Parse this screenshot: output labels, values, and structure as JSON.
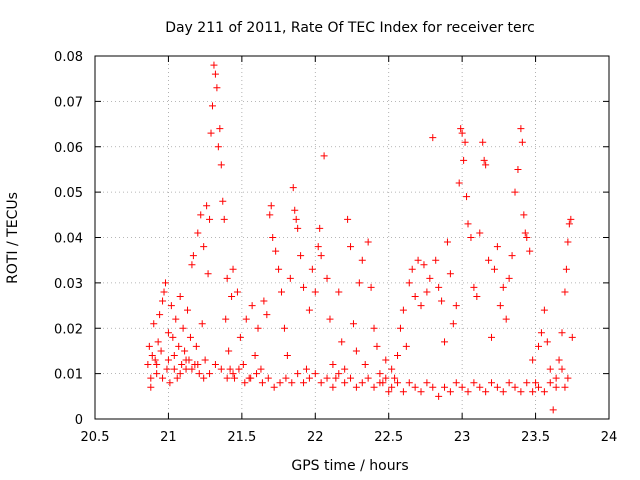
{
  "chart_data": {
    "type": "scatter",
    "title": "Day 211 of 2011, Rate Of TEC Index for receiver terc",
    "xlabel": "GPS time / hours",
    "ylabel": "ROTI / TECUs",
    "xlim": [
      20.5,
      24
    ],
    "ylim": [
      0,
      0.08
    ],
    "xticks": [
      "20.5",
      "21",
      "21.5",
      "22",
      "22.5",
      "23",
      "23.5",
      "24"
    ],
    "yticks": [
      "0",
      "0.01",
      "0.02",
      "0.03",
      "0.04",
      "0.05",
      "0.06",
      "0.07",
      "0.08"
    ],
    "grid": true,
    "marker": "+",
    "color": "#ff0000",
    "series": [
      {
        "points": [
          [
            20.86,
            0.012
          ],
          [
            20.87,
            0.016
          ],
          [
            20.88,
            0.009
          ],
          [
            20.89,
            0.014
          ],
          [
            20.9,
            0.021
          ],
          [
            20.91,
            0.013
          ],
          [
            20.92,
            0.01
          ],
          [
            20.93,
            0.017
          ],
          [
            20.94,
            0.023
          ],
          [
            20.95,
            0.015
          ],
          [
            20.96,
            0.026
          ],
          [
            20.97,
            0.028
          ],
          [
            20.98,
            0.03
          ],
          [
            20.99,
            0.011
          ],
          [
            21.0,
            0.019
          ],
          [
            21.01,
            0.008
          ],
          [
            21.02,
            0.025
          ],
          [
            21.03,
            0.018
          ],
          [
            21.04,
            0.014
          ],
          [
            21.05,
            0.022
          ],
          [
            21.06,
            0.009
          ],
          [
            21.07,
            0.016
          ],
          [
            21.08,
            0.027
          ],
          [
            21.09,
            0.012
          ],
          [
            21.1,
            0.02
          ],
          [
            21.11,
            0.015
          ],
          [
            21.12,
            0.011
          ],
          [
            21.13,
            0.024
          ],
          [
            21.14,
            0.013
          ],
          [
            21.15,
            0.018
          ],
          [
            21.16,
            0.034
          ],
          [
            21.17,
            0.036
          ],
          [
            21.18,
            0.012
          ],
          [
            21.19,
            0.016
          ],
          [
            21.2,
            0.041
          ],
          [
            21.21,
            0.01
          ],
          [
            21.22,
            0.045
          ],
          [
            21.23,
            0.021
          ],
          [
            21.24,
            0.038
          ],
          [
            21.25,
            0.013
          ],
          [
            21.26,
            0.047
          ],
          [
            21.27,
            0.032
          ],
          [
            21.28,
            0.044
          ],
          [
            21.29,
            0.063
          ],
          [
            21.3,
            0.069
          ],
          [
            21.31,
            0.078
          ],
          [
            21.32,
            0.076
          ],
          [
            21.33,
            0.073
          ],
          [
            21.34,
            0.06
          ],
          [
            21.35,
            0.064
          ],
          [
            21.36,
            0.056
          ],
          [
            21.37,
            0.048
          ],
          [
            21.38,
            0.044
          ],
          [
            21.39,
            0.022
          ],
          [
            21.4,
            0.031
          ],
          [
            21.41,
            0.015
          ],
          [
            21.42,
            0.011
          ],
          [
            21.43,
            0.027
          ],
          [
            21.44,
            0.033
          ],
          [
            21.45,
            0.009
          ],
          [
            21.47,
            0.028
          ],
          [
            21.49,
            0.018
          ],
          [
            21.51,
            0.012
          ],
          [
            21.53,
            0.022
          ],
          [
            21.55,
            0.009
          ],
          [
            21.57,
            0.025
          ],
          [
            21.59,
            0.014
          ],
          [
            21.61,
            0.02
          ],
          [
            21.63,
            0.011
          ],
          [
            21.65,
            0.026
          ],
          [
            21.67,
            0.023
          ],
          [
            21.69,
            0.045
          ],
          [
            21.7,
            0.047
          ],
          [
            21.71,
            0.04
          ],
          [
            21.73,
            0.037
          ],
          [
            21.75,
            0.033
          ],
          [
            21.77,
            0.028
          ],
          [
            21.79,
            0.02
          ],
          [
            21.81,
            0.014
          ],
          [
            21.83,
            0.031
          ],
          [
            21.85,
            0.051
          ],
          [
            21.86,
            0.046
          ],
          [
            21.87,
            0.044
          ],
          [
            21.88,
            0.042
          ],
          [
            21.9,
            0.036
          ],
          [
            21.92,
            0.029
          ],
          [
            21.94,
            0.011
          ],
          [
            21.96,
            0.024
          ],
          [
            21.98,
            0.033
          ],
          [
            22.0,
            0.028
          ],
          [
            22.02,
            0.038
          ],
          [
            22.03,
            0.042
          ],
          [
            22.04,
            0.036
          ],
          [
            22.06,
            0.058
          ],
          [
            22.08,
            0.031
          ],
          [
            22.1,
            0.022
          ],
          [
            22.12,
            0.012
          ],
          [
            22.14,
            0.009
          ],
          [
            22.16,
            0.028
          ],
          [
            22.18,
            0.017
          ],
          [
            22.2,
            0.011
          ],
          [
            22.22,
            0.044
          ],
          [
            22.24,
            0.038
          ],
          [
            22.26,
            0.021
          ],
          [
            22.28,
            0.015
          ],
          [
            22.3,
            0.03
          ],
          [
            22.32,
            0.035
          ],
          [
            22.34,
            0.012
          ],
          [
            22.36,
            0.039
          ],
          [
            22.38,
            0.029
          ],
          [
            22.4,
            0.02
          ],
          [
            22.42,
            0.016
          ],
          [
            22.44,
            0.01
          ],
          [
            22.46,
            0.008
          ],
          [
            22.48,
            0.013
          ],
          [
            22.5,
            0.006
          ],
          [
            22.52,
            0.011
          ],
          [
            22.54,
            0.009
          ],
          [
            22.56,
            0.014
          ],
          [
            22.58,
            0.02
          ],
          [
            22.6,
            0.024
          ],
          [
            22.62,
            0.016
          ],
          [
            22.64,
            0.03
          ],
          [
            22.66,
            0.033
          ],
          [
            22.68,
            0.027
          ],
          [
            22.7,
            0.035
          ],
          [
            22.72,
            0.025
          ],
          [
            22.74,
            0.034
          ],
          [
            22.76,
            0.028
          ],
          [
            22.78,
            0.031
          ],
          [
            22.8,
            0.062
          ],
          [
            22.82,
            0.035
          ],
          [
            22.84,
            0.029
          ],
          [
            22.86,
            0.026
          ],
          [
            22.88,
            0.017
          ],
          [
            22.9,
            0.039
          ],
          [
            22.92,
            0.032
          ],
          [
            22.94,
            0.021
          ],
          [
            22.96,
            0.025
          ],
          [
            22.98,
            0.052
          ],
          [
            22.99,
            0.064
          ],
          [
            23.0,
            0.063
          ],
          [
            23.01,
            0.057
          ],
          [
            23.02,
            0.061
          ],
          [
            23.03,
            0.049
          ],
          [
            23.04,
            0.043
          ],
          [
            23.06,
            0.04
          ],
          [
            23.08,
            0.029
          ],
          [
            23.1,
            0.027
          ],
          [
            23.12,
            0.041
          ],
          [
            23.14,
            0.061
          ],
          [
            23.15,
            0.057
          ],
          [
            23.16,
            0.056
          ],
          [
            23.18,
            0.035
          ],
          [
            23.2,
            0.018
          ],
          [
            23.22,
            0.033
          ],
          [
            23.24,
            0.038
          ],
          [
            23.26,
            0.025
          ],
          [
            23.28,
            0.029
          ],
          [
            23.3,
            0.022
          ],
          [
            23.32,
            0.031
          ],
          [
            23.34,
            0.036
          ],
          [
            23.36,
            0.05
          ],
          [
            23.38,
            0.055
          ],
          [
            23.4,
            0.064
          ],
          [
            23.41,
            0.061
          ],
          [
            23.42,
            0.045
          ],
          [
            23.43,
            0.041
          ],
          [
            23.44,
            0.04
          ],
          [
            23.46,
            0.037
          ],
          [
            23.48,
            0.013
          ],
          [
            23.5,
            0.008
          ],
          [
            23.52,
            0.016
          ],
          [
            23.54,
            0.019
          ],
          [
            23.56,
            0.024
          ],
          [
            23.58,
            0.017
          ],
          [
            23.6,
            0.011
          ],
          [
            23.62,
            0.002
          ],
          [
            23.64,
            0.009
          ],
          [
            23.66,
            0.013
          ],
          [
            23.68,
            0.019
          ],
          [
            23.7,
            0.028
          ],
          [
            23.71,
            0.033
          ],
          [
            23.72,
            0.039
          ],
          [
            23.73,
            0.043
          ],
          [
            23.74,
            0.044
          ],
          [
            23.75,
            0.018
          ],
          [
            23.72,
            0.009
          ],
          [
            23.7,
            0.007
          ],
          [
            23.68,
            0.011
          ],
          [
            20.88,
            0.007
          ],
          [
            20.92,
            0.012
          ],
          [
            20.96,
            0.009
          ],
          [
            21.0,
            0.013
          ],
          [
            21.04,
            0.011
          ],
          [
            21.08,
            0.01
          ],
          [
            21.12,
            0.013
          ],
          [
            21.16,
            0.011
          ],
          [
            21.2,
            0.012
          ],
          [
            21.24,
            0.009
          ],
          [
            21.28,
            0.01
          ],
          [
            21.32,
            0.012
          ],
          [
            21.36,
            0.011
          ],
          [
            21.4,
            0.009
          ],
          [
            21.44,
            0.01
          ],
          [
            21.48,
            0.011
          ],
          [
            21.52,
            0.008
          ],
          [
            21.56,
            0.009
          ],
          [
            21.6,
            0.01
          ],
          [
            21.64,
            0.008
          ],
          [
            21.68,
            0.009
          ],
          [
            21.72,
            0.007
          ],
          [
            21.76,
            0.008
          ],
          [
            21.8,
            0.009
          ],
          [
            21.84,
            0.008
          ],
          [
            21.88,
            0.01
          ],
          [
            21.92,
            0.008
          ],
          [
            21.96,
            0.009
          ],
          [
            22.0,
            0.01
          ],
          [
            22.04,
            0.008
          ],
          [
            22.08,
            0.009
          ],
          [
            22.12,
            0.007
          ],
          [
            22.16,
            0.01
          ],
          [
            22.2,
            0.008
          ],
          [
            22.24,
            0.009
          ],
          [
            22.28,
            0.007
          ],
          [
            22.32,
            0.008
          ],
          [
            22.36,
            0.009
          ],
          [
            22.4,
            0.007
          ],
          [
            22.44,
            0.008
          ],
          [
            22.48,
            0.009
          ],
          [
            22.52,
            0.007
          ],
          [
            22.56,
            0.008
          ],
          [
            22.6,
            0.006
          ],
          [
            22.64,
            0.008
          ],
          [
            22.68,
            0.007
          ],
          [
            22.72,
            0.006
          ],
          [
            22.76,
            0.008
          ],
          [
            22.8,
            0.007
          ],
          [
            22.84,
            0.005
          ],
          [
            22.88,
            0.007
          ],
          [
            22.92,
            0.006
          ],
          [
            22.96,
            0.008
          ],
          [
            23.0,
            0.007
          ],
          [
            23.04,
            0.006
          ],
          [
            23.08,
            0.008
          ],
          [
            23.12,
            0.007
          ],
          [
            23.16,
            0.006
          ],
          [
            23.2,
            0.008
          ],
          [
            23.24,
            0.007
          ],
          [
            23.28,
            0.006
          ],
          [
            23.32,
            0.008
          ],
          [
            23.36,
            0.007
          ],
          [
            23.4,
            0.006
          ],
          [
            23.44,
            0.008
          ],
          [
            23.48,
            0.006
          ],
          [
            23.52,
            0.007
          ],
          [
            23.56,
            0.006
          ],
          [
            23.6,
            0.008
          ],
          [
            23.64,
            0.007
          ]
        ]
      }
    ]
  }
}
